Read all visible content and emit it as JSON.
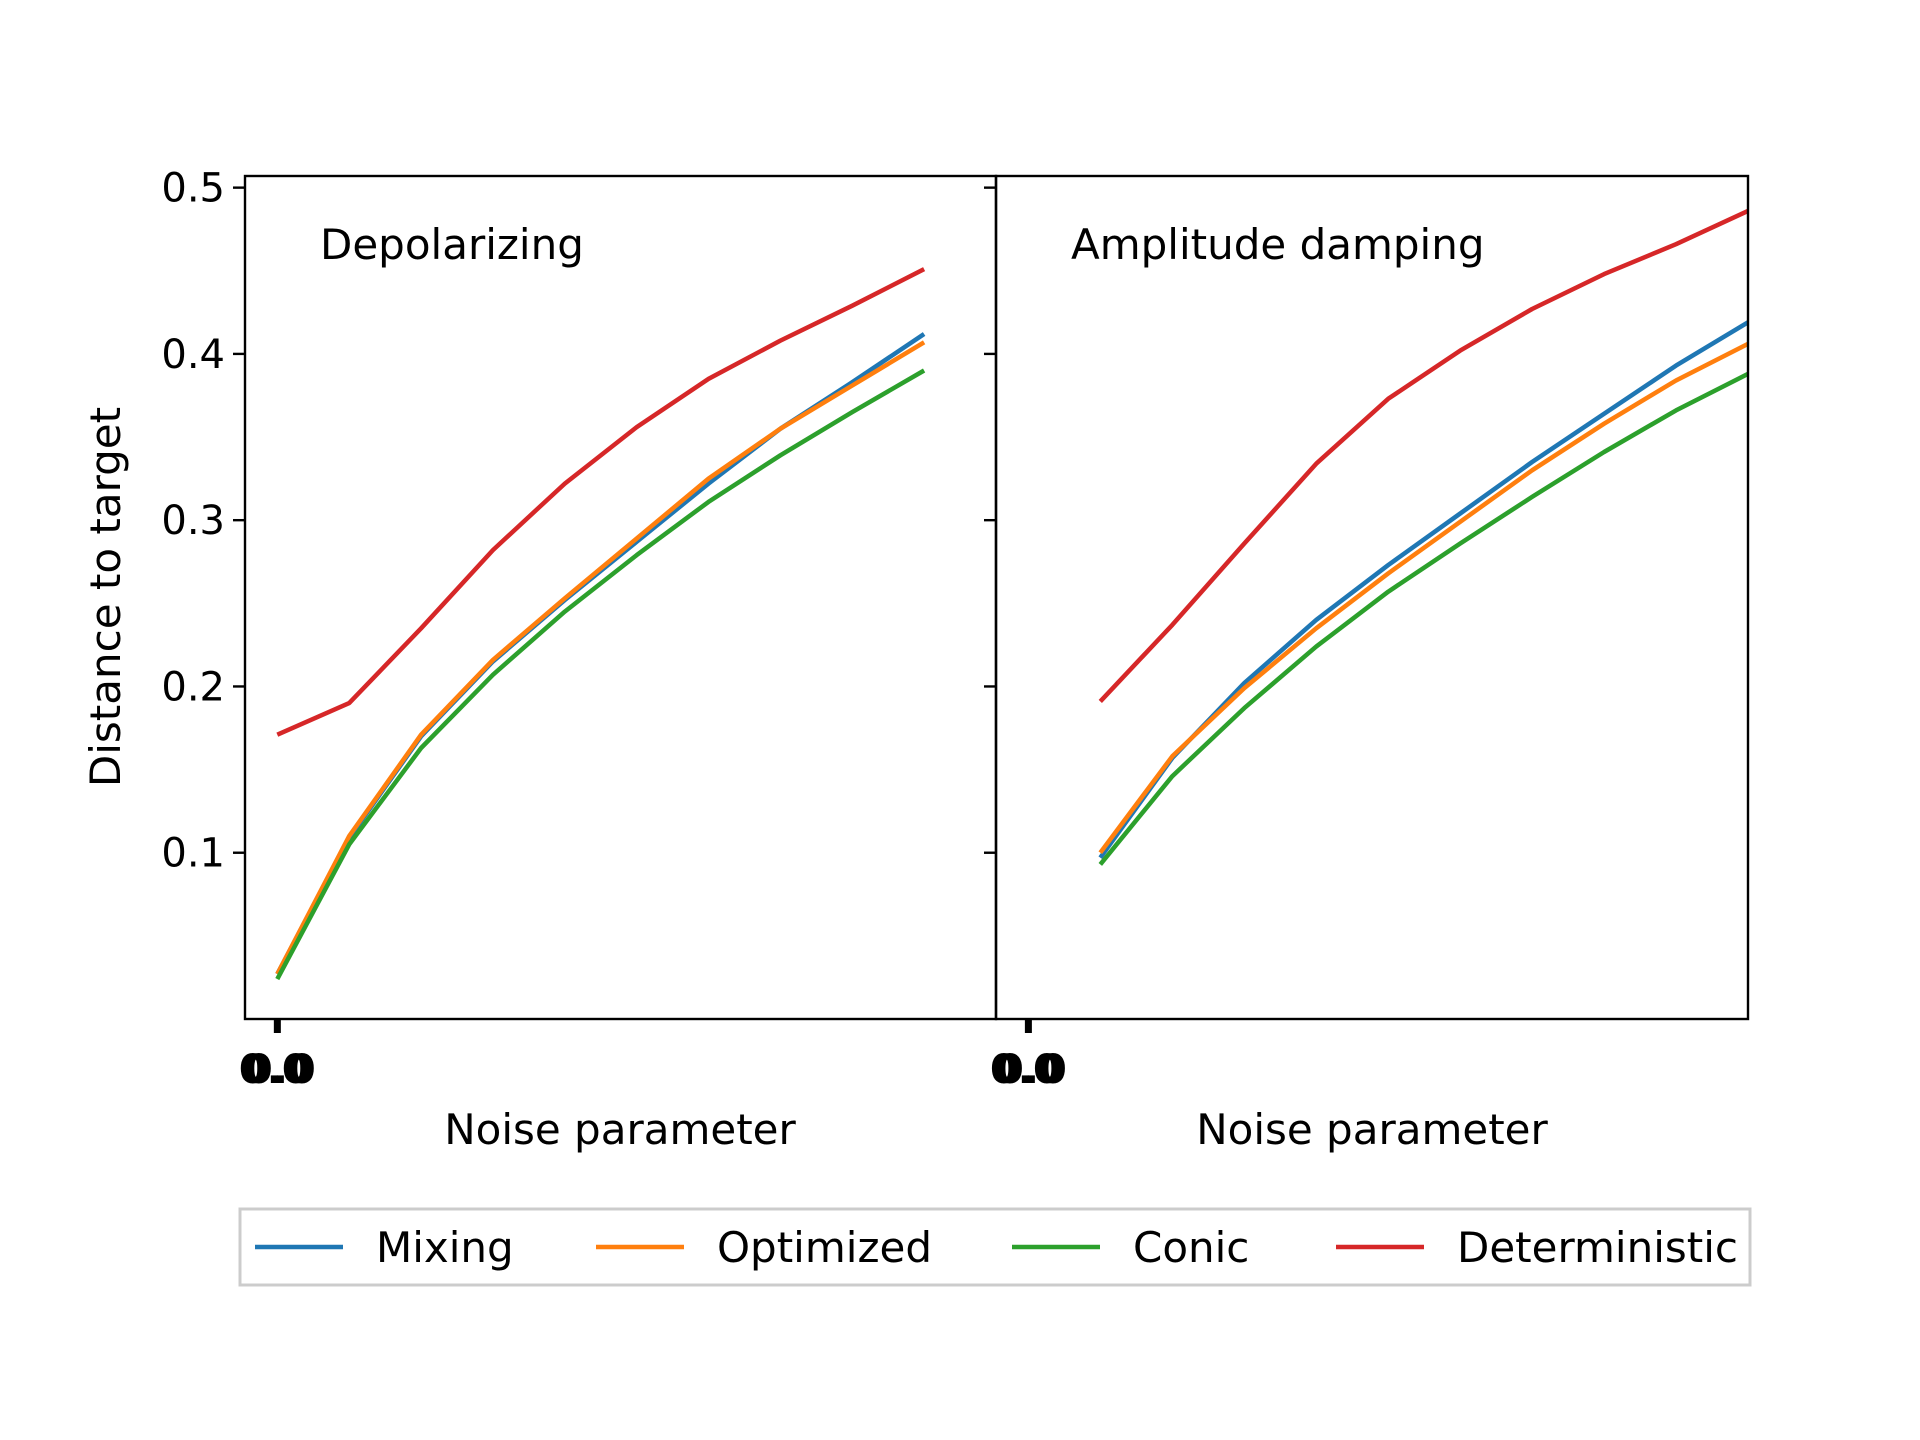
{
  "chart_data": {
    "type": "line",
    "ylabel": "Distance to target",
    "ylim": [
      0.0,
      0.507
    ],
    "yticks": [
      0.1,
      0.2,
      0.3,
      0.4,
      0.5
    ],
    "ytick_labels": [
      "0.1",
      "0.2",
      "0.3",
      "0.4",
      "0.5"
    ],
    "legend_position": "bottom-center",
    "series_styles": [
      {
        "name": "Mixing",
        "color": "#1f77b4"
      },
      {
        "name": "Optimized",
        "color": "#ff7f0e"
      },
      {
        "name": "Conic",
        "color": "#2ca02c"
      },
      {
        "name": "Deterministic",
        "color": "#d62728"
      }
    ],
    "panels": [
      {
        "title": "Depolarizing",
        "xlabel": "Noise parameter",
        "xtick_labels": [
          "0.0",
          "0.0"
        ],
        "xlim": [
          -0.45,
          10.0
        ],
        "x": [
          0,
          1,
          2,
          3,
          4,
          5,
          6,
          7,
          8,
          9
        ],
        "series": [
          {
            "name": "Mixing",
            "values": [
              0.027,
              0.109,
              0.17,
              0.215,
              0.252,
              0.287,
              0.322,
              0.355,
              0.383,
              0.412
            ]
          },
          {
            "name": "Optimized",
            "values": [
              0.027,
              0.11,
              0.171,
              0.216,
              0.253,
              0.289,
              0.325,
              0.355,
              0.381,
              0.407
            ]
          },
          {
            "name": "Conic",
            "values": [
              0.024,
              0.105,
              0.163,
              0.207,
              0.245,
              0.279,
              0.311,
              0.339,
              0.365,
              0.39
            ]
          },
          {
            "name": "Deterministic",
            "values": [
              0.171,
              0.19,
              0.235,
              0.282,
              0.322,
              0.356,
              0.385,
              0.408,
              0.429,
              0.451
            ]
          }
        ]
      },
      {
        "title": "Amplitude damping",
        "xlabel": "Noise parameter",
        "xtick_labels": [
          "0.0",
          "0.0"
        ],
        "xlim": [
          -0.45,
          10.0
        ],
        "x": [
          1,
          2,
          3,
          4,
          5,
          6,
          7,
          8,
          9,
          10
        ],
        "series": [
          {
            "name": "Mixing",
            "values": [
              0.097,
              0.157,
              0.202,
              0.24,
              0.273,
              0.304,
              0.335,
              0.364,
              0.393,
              0.419
            ]
          },
          {
            "name": "Optimized",
            "values": [
              0.1,
              0.158,
              0.199,
              0.235,
              0.268,
              0.299,
              0.33,
              0.358,
              0.384,
              0.406
            ]
          },
          {
            "name": "Conic",
            "values": [
              0.093,
              0.146,
              0.187,
              0.224,
              0.257,
              0.286,
              0.314,
              0.341,
              0.366,
              0.388
            ]
          },
          {
            "name": "Deterministic",
            "values": [
              0.191,
              0.237,
              0.286,
              0.334,
              0.373,
              0.402,
              0.427,
              0.448,
              0.466,
              0.486
            ]
          }
        ]
      }
    ]
  }
}
